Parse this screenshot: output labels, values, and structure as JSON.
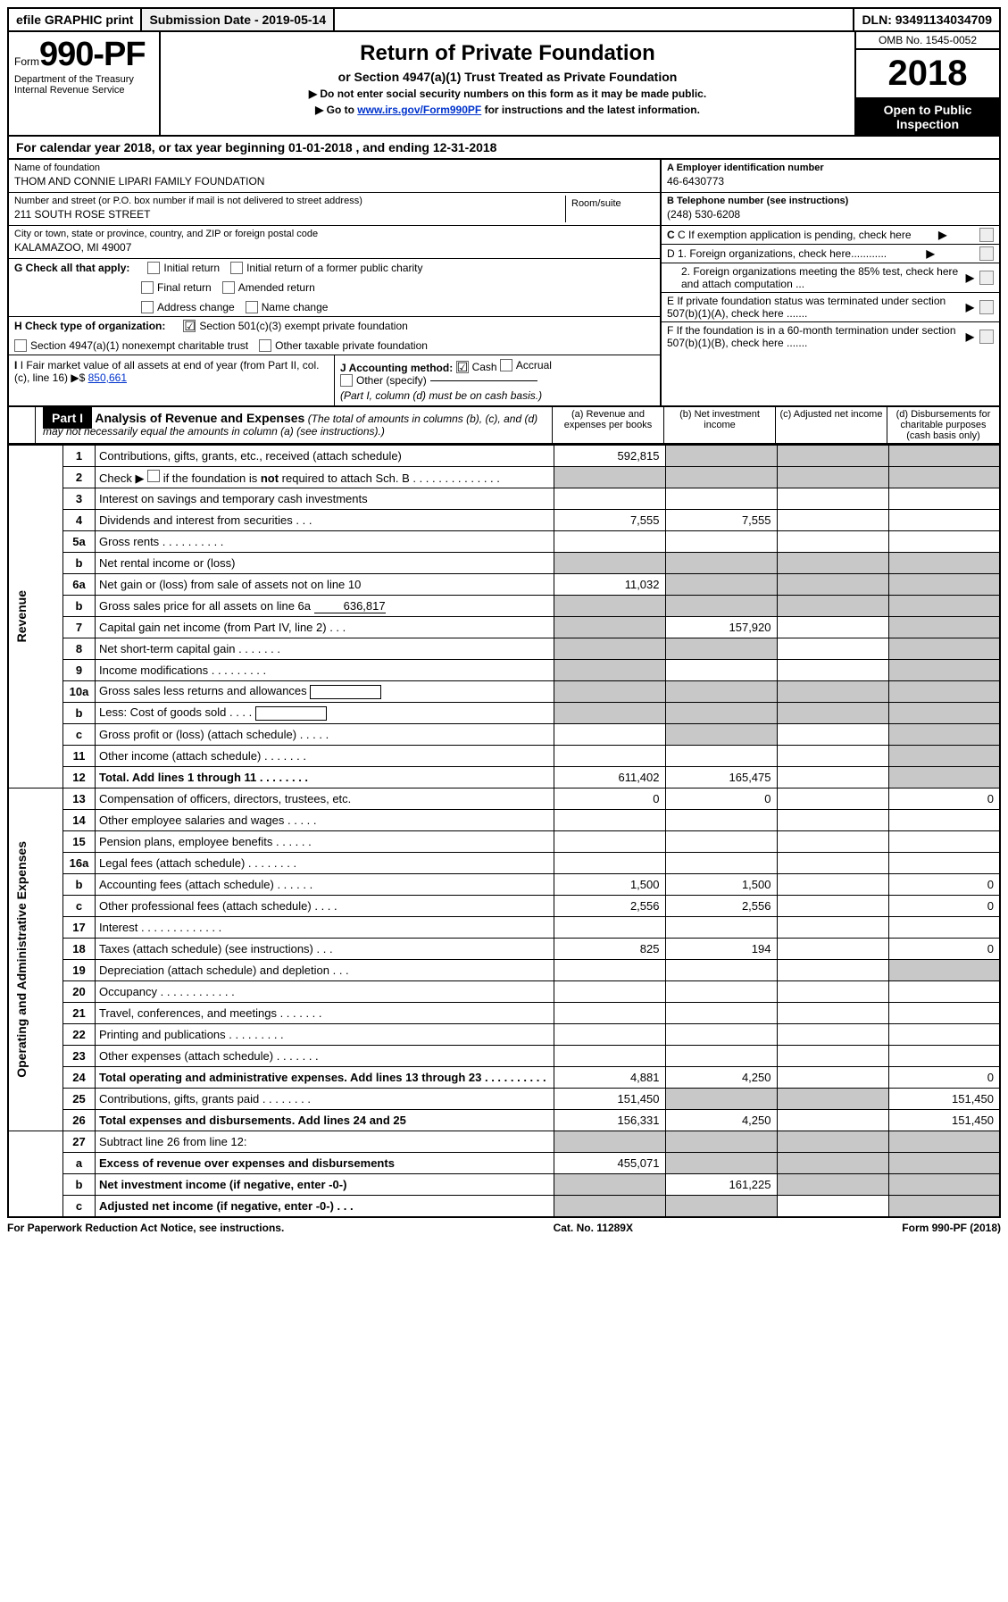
{
  "topbar": {
    "efile": "efile GRAPHIC print",
    "submission": "Submission Date - 2019-05-14",
    "dln": "DLN: 93491134034709"
  },
  "header": {
    "form_prefix": "Form",
    "form_number": "990-PF",
    "dept": "Department of the Treasury",
    "irs": "Internal Revenue Service",
    "title": "Return of Private Foundation",
    "subtitle": "or Section 4947(a)(1) Trust Treated as Private Foundation",
    "note1": "▶ Do not enter social security numbers on this form as it may be made public.",
    "note2_pre": "▶ Go to ",
    "note2_link": "www.irs.gov/Form990PF",
    "note2_post": " for instructions and the latest information.",
    "omb": "OMB No. 1545-0052",
    "year": "2018",
    "open": "Open to Public Inspection"
  },
  "calendar": "For calendar year 2018, or tax year beginning 01-01-2018             , and ending 12-31-2018",
  "entity": {
    "name_label": "Name of foundation",
    "name": "THOM AND CONNIE LIPARI FAMILY FOUNDATION",
    "addr_label": "Number and street (or P.O. box number if mail is not delivered to street address)",
    "addr": "211 SOUTH ROSE STREET",
    "room_label": "Room/suite",
    "city_label": "City or town, state or province, country, and ZIP or foreign postal code",
    "city": "KALAMAZOO, MI  49007"
  },
  "right_info": {
    "a_label": "A Employer identification number",
    "a_val": "46-6430773",
    "b_label": "B Telephone number (see instructions)",
    "b_val": "(248) 530-6208",
    "c_label": "C If exemption application is pending, check here",
    "d1": "D 1. Foreign organizations, check here............",
    "d2": "2. Foreign organizations meeting the 85% test, check here and attach computation ...",
    "e": "E   If private foundation status was terminated under section 507(b)(1)(A), check here .......",
    "f": "F   If the foundation is in a 60-month termination under section 507(b)(1)(B), check here .......",
    "arrow": "▶"
  },
  "g_block": {
    "g_label": "G Check all that apply:",
    "g_opts": [
      "Initial return",
      "Initial return of a former public charity",
      "Final return",
      "Amended return",
      "Address change",
      "Name change"
    ],
    "h_label": "H Check type of organization:",
    "h_opts": [
      "Section 501(c)(3) exempt private foundation",
      "Section 4947(a)(1) nonexempt charitable trust",
      "Other taxable private foundation"
    ],
    "i_label": "I Fair market value of all assets at end of year (from Part II, col. (c), line 16)",
    "i_prefix": "▶$",
    "i_val": "850,661",
    "j_label": "J Accounting method:",
    "j_opts": [
      "Cash",
      "Accrual"
    ],
    "j_other": "Other (specify)",
    "j_note": "(Part I, column (d) must be on cash basis.)"
  },
  "part1": {
    "tag": "Part I",
    "title": "Analysis of Revenue and Expenses",
    "title_note": " (The total of amounts in columns (b), (c), and (d) may not necessarily equal the amounts in column (a) (see instructions).)",
    "cols": {
      "a": "(a)   Revenue and expenses per books",
      "b": "(b)   Net investment income",
      "c": "(c)   Adjusted net income",
      "d": "(d)   Disbursements for charitable purposes (cash basis only)"
    }
  },
  "sections": {
    "revenue": "Revenue",
    "expenses": "Operating and Administrative Expenses"
  },
  "lines": {
    "l1": {
      "n": "1",
      "d": "Contributions, gifts, grants, etc., received (attach schedule)",
      "a": "592,815"
    },
    "l2": {
      "n": "2",
      "d": "Check ▶ ☐ if the foundation is not required to attach Sch. B"
    },
    "l3": {
      "n": "3",
      "d": "Interest on savings and temporary cash investments"
    },
    "l4": {
      "n": "4",
      "d": "Dividends and interest from securities    .   .   .",
      "a": "7,555",
      "b": "7,555"
    },
    "l5a": {
      "n": "5a",
      "d": "Gross rents      .   .   .   .   .   .   .   .   .   ."
    },
    "l5b": {
      "n": "b",
      "d": "Net rental income or (loss)"
    },
    "l6a": {
      "n": "6a",
      "d": "Net gain or (loss) from sale of assets not on line 10",
      "a": "11,032"
    },
    "l6b": {
      "n": "b",
      "d": "Gross sales price for all assets on line 6a",
      "inline": "636,817"
    },
    "l7": {
      "n": "7",
      "d": "Capital gain net income (from Part IV, line 2)   .   .   .",
      "b": "157,920"
    },
    "l8": {
      "n": "8",
      "d": "Net short-term capital gain    .   .   .   .   .   .   ."
    },
    "l9": {
      "n": "9",
      "d": "Income modifications   .   .   .   .   .   .   .   .   ."
    },
    "l10a": {
      "n": "10a",
      "d": "Gross sales less returns and allowances"
    },
    "l10b": {
      "n": "b",
      "d": "Less: Cost of goods sold   .   .   .   ."
    },
    "l10c": {
      "n": "c",
      "d": "Gross profit or (loss) (attach schedule)   .   .   .   .   ."
    },
    "l11": {
      "n": "11",
      "d": "Other income (attach schedule)   .   .   .   .   .   .   ."
    },
    "l12": {
      "n": "12",
      "d": "Total. Add lines 1 through 11   .   .   .   .   .   .   .   .",
      "a": "611,402",
      "b": "165,475",
      "bold": true
    },
    "l13": {
      "n": "13",
      "d": "Compensation of officers, directors, trustees, etc.",
      "a": "0",
      "b": "0",
      "dd": "0"
    },
    "l14": {
      "n": "14",
      "d": "Other employee salaries and wages   .   .   .   .   ."
    },
    "l15": {
      "n": "15",
      "d": "Pension plans, employee benefits   .   .   .   .   .   ."
    },
    "l16a": {
      "n": "16a",
      "d": "Legal fees (attach schedule)  .   .   .   .   .   .   .   ."
    },
    "l16b": {
      "n": "b",
      "d": "Accounting fees (attach schedule)   .   .   .   .   .   .",
      "a": "1,500",
      "b": "1,500",
      "dd": "0"
    },
    "l16c": {
      "n": "c",
      "d": "Other professional fees (attach schedule)   .   .   .   .",
      "a": "2,556",
      "b": "2,556",
      "dd": "0"
    },
    "l17": {
      "n": "17",
      "d": "Interest   .   .   .   .   .   .   .   .   .   .   .   .   ."
    },
    "l18": {
      "n": "18",
      "d": "Taxes (attach schedule) (see instructions)   .   .   .",
      "a": "825",
      "b": "194",
      "dd": "0"
    },
    "l19": {
      "n": "19",
      "d": "Depreciation (attach schedule) and depletion   .   .   ."
    },
    "l20": {
      "n": "20",
      "d": "Occupancy   .   .   .   .   .   .   .   .   .   .   .   ."
    },
    "l21": {
      "n": "21",
      "d": "Travel, conferences, and meetings   .   .   .   .   .   .   ."
    },
    "l22": {
      "n": "22",
      "d": "Printing and publications   .   .   .   .   .   .   .   .   ."
    },
    "l23": {
      "n": "23",
      "d": "Other expenses (attach schedule)   .   .   .   .   .   .   ."
    },
    "l24": {
      "n": "24",
      "d": "Total operating and administrative expenses. Add lines 13 through 23   .   .   .   .   .   .   .   .   .   .",
      "a": "4,881",
      "b": "4,250",
      "dd": "0",
      "bold": true
    },
    "l25": {
      "n": "25",
      "d": "Contributions, gifts, grants paid   .   .   .   .   .   .   .   .",
      "a": "151,450",
      "dd": "151,450"
    },
    "l26": {
      "n": "26",
      "d": "Total expenses and disbursements. Add lines 24 and 25",
      "a": "156,331",
      "b": "4,250",
      "dd": "151,450",
      "bold": true
    },
    "l27": {
      "n": "27",
      "d": "Subtract line 26 from line 12:"
    },
    "l27a": {
      "n": "a",
      "d": "Excess of revenue over expenses and disbursements",
      "a": "455,071",
      "bold": true
    },
    "l27b": {
      "n": "b",
      "d": "Net investment income (if negative, enter -0-)",
      "b": "161,225",
      "bold": true
    },
    "l27c": {
      "n": "c",
      "d": "Adjusted net income (if negative, enter -0-)   .   .   .",
      "bold": true
    }
  },
  "footer": {
    "pra": "For Paperwork Reduction Act Notice, see instructions.",
    "cat": "Cat. No. 11289X",
    "form": "Form 990-PF (2018)"
  }
}
